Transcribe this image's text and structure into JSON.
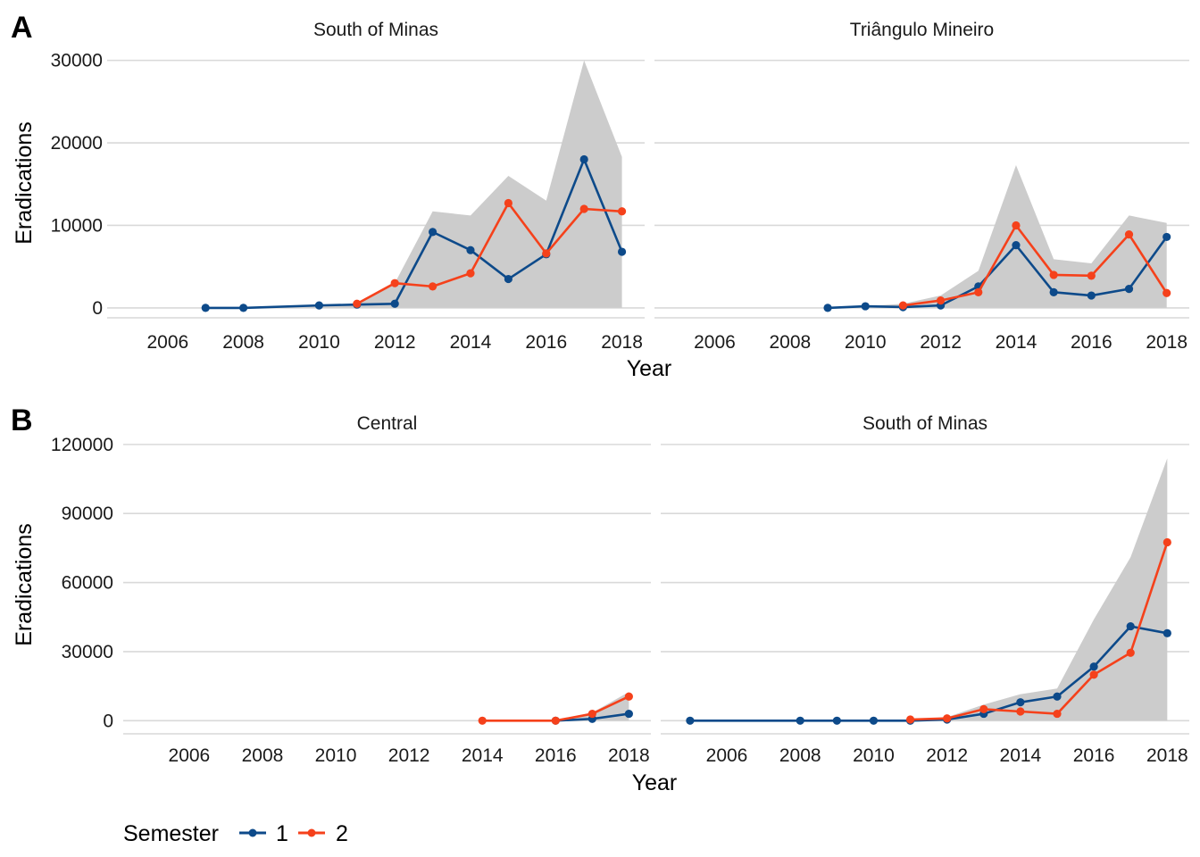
{
  "colors": {
    "semester_1": "#0d4a8a",
    "semester_2": "#f5411b",
    "ribbon": "#cccccc",
    "grid": "#d9d9d9"
  },
  "legend": {
    "title": "Semester",
    "items": [
      "1",
      "2"
    ]
  },
  "chart_data": [
    {
      "tag": "A",
      "type": "line",
      "xlabel": "Year",
      "ylabel": "Eradications",
      "xticks": [
        "2006",
        "2008",
        "2010",
        "2012",
        "2014",
        "2016",
        "2018"
      ],
      "yticks": [
        "0",
        "10000",
        "20000",
        "30000"
      ],
      "ylim": [
        -1200,
        30500
      ],
      "xlim": [
        2004.4,
        2018.6
      ],
      "facets": [
        {
          "title": "South of Minas",
          "ribbon": {
            "x": [
              2007,
              2008,
              2010,
              2011,
              2012,
              2013,
              2014,
              2015,
              2016,
              2017,
              2018
            ],
            "y": [
              0,
              0,
              300,
              500,
              3000,
              11700,
              11200,
              16000,
              13000,
              30000,
              18300
            ]
          },
          "series": [
            {
              "name": "1",
              "x": [
                2007,
                2008,
                2010,
                2011,
                2012,
                2013,
                2014,
                2015,
                2016,
                2017,
                2018
              ],
              "y": [
                0,
                0,
                300,
                400,
                500,
                9200,
                7000,
                3500,
                6500,
                18000,
                6800
              ]
            },
            {
              "name": "2",
              "x": [
                2011,
                2012,
                2013,
                2014,
                2015,
                2016,
                2017,
                2018
              ],
              "y": [
                500,
                3000,
                2600,
                4200,
                12700,
                6600,
                12000,
                11700
              ]
            }
          ]
        },
        {
          "title": "Triângulo Mineiro",
          "ribbon": {
            "x": [
              2009,
              2010,
              2011,
              2012,
              2013,
              2014,
              2015,
              2016,
              2017,
              2018
            ],
            "y": [
              0,
              200,
              500,
              1500,
              4500,
              17300,
              5900,
              5400,
              11200,
              10300
            ]
          },
          "series": [
            {
              "name": "1",
              "x": [
                2009,
                2010,
                2011,
                2012,
                2013,
                2014,
                2015,
                2016,
                2017,
                2018
              ],
              "y": [
                0,
                200,
                100,
                300,
                2600,
                7600,
                1900,
                1500,
                2300,
                8600
              ]
            },
            {
              "name": "2",
              "x": [
                2011,
                2012,
                2013,
                2014,
                2015,
                2016,
                2017,
                2018
              ],
              "y": [
                300,
                900,
                1900,
                10000,
                4000,
                3900,
                8900,
                1800
              ]
            }
          ]
        }
      ]
    },
    {
      "tag": "B",
      "type": "line",
      "xlabel": "Year",
      "ylabel": "Eradications",
      "xticks": [
        "2006",
        "2008",
        "2010",
        "2012",
        "2014",
        "2016",
        "2018"
      ],
      "yticks": [
        "0",
        "30000",
        "60000",
        "90000",
        "120000"
      ],
      "ylim": [
        -5700,
        121500
      ],
      "xlim": [
        2004.2,
        2018.6
      ],
      "facets": [
        {
          "title": "Central",
          "ribbon": {
            "x": [
              2014,
              2016,
              2017,
              2018
            ],
            "y": [
              0,
              200,
              3500,
              12500
            ]
          },
          "series": [
            {
              "name": "1",
              "x": [
                2016,
                2017,
                2018
              ],
              "y": [
                0,
                800,
                3000
              ]
            },
            {
              "name": "2",
              "x": [
                2014,
                2016,
                2017,
                2018
              ],
              "y": [
                0,
                0,
                3000,
                10500
              ]
            }
          ]
        },
        {
          "title": "South of Minas",
          "ribbon": {
            "x": [
              2005,
              2008,
              2009,
              2010,
              2011,
              2012,
              2013,
              2014,
              2015,
              2016,
              2017,
              2018
            ],
            "y": [
              0,
              0,
              0,
              0,
              500,
              1500,
              7000,
              11500,
              14000,
              44000,
              71000,
              114000
            ]
          },
          "series": [
            {
              "name": "1",
              "x": [
                2005,
                2008,
                2009,
                2010,
                2011,
                2012,
                2013,
                2014,
                2015,
                2016,
                2017,
                2018
              ],
              "y": [
                0,
                0,
                0,
                0,
                0,
                500,
                3000,
                8000,
                10500,
                23500,
                41000,
                38000
              ]
            },
            {
              "name": "2",
              "x": [
                2011,
                2012,
                2013,
                2014,
                2015,
                2016,
                2017,
                2018
              ],
              "y": [
                500,
                1000,
                5000,
                4000,
                3000,
                20000,
                29500,
                77500
              ]
            }
          ]
        }
      ]
    }
  ]
}
